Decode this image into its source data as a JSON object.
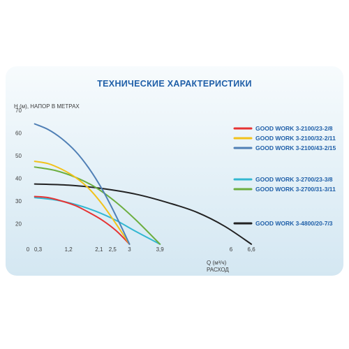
{
  "chart_data": {
    "type": "line",
    "title": "ТЕХНИЧЕСКИЕ  ХАРАКТЕРИСТИКИ",
    "ylabel": "H (м), НАПОР В МЕТРАХ",
    "xlabel": "Q (м³/ч)",
    "xlabel2": "РАСХОД",
    "xlim": [
      0,
      6.6
    ],
    "ylim": [
      10,
      70
    ],
    "x_ticks": [
      0,
      0.3,
      1.2,
      2.1,
      2.5,
      3,
      3.9,
      6,
      6.6
    ],
    "x_tick_labels": [
      "0",
      "0,3",
      "1,2",
      "2,1",
      "2,5",
      "3",
      "3,9",
      "6",
      "6,6"
    ],
    "y_ticks": [
      20,
      30,
      40,
      50,
      60,
      70
    ],
    "y_tick_labels": [
      "20",
      "30",
      "40",
      "50",
      "60",
      "70"
    ],
    "grid": false,
    "legend_position": "right",
    "series": [
      {
        "name": "GOOD WORK 3-2100/23-2/8",
        "color": "#e63333",
        "x": [
          0.2,
          0.6,
          1.0,
          1.4,
          1.8,
          2.2,
          2.6,
          3.0
        ],
        "y": [
          32,
          31.5,
          30,
          28,
          25,
          21.5,
          17,
          11
        ]
      },
      {
        "name": "GOOD WORK 3-2100/32-2/11",
        "color": "#f2c21b",
        "x": [
          0.2,
          0.6,
          1.0,
          1.4,
          1.8,
          2.2,
          2.6,
          3.0
        ],
        "y": [
          47.5,
          46.5,
          44,
          40.5,
          35.5,
          28.5,
          20,
          11
        ]
      },
      {
        "name": "GOOD WORK 3-2100/43-2/15",
        "color": "#4f7fb5",
        "x": [
          0.2,
          0.6,
          1.0,
          1.4,
          1.8,
          2.2,
          2.6,
          3.0
        ],
        "y": [
          64,
          61.5,
          57.5,
          52,
          44.5,
          35,
          23.5,
          11
        ]
      },
      {
        "name": "GOOD WORK 3-2700/23-3/8",
        "color": "#33b7d1",
        "x": [
          0.2,
          0.8,
          1.4,
          2.0,
          2.6,
          3.2,
          3.9
        ],
        "y": [
          31.5,
          30.5,
          28.5,
          25.5,
          21.5,
          16.5,
          11
        ]
      },
      {
        "name": "GOOD WORK 3-2700/31-3/11",
        "color": "#6cae3f",
        "x": [
          0.2,
          0.8,
          1.4,
          2.0,
          2.6,
          3.2,
          3.9
        ],
        "y": [
          45,
          43.5,
          40.5,
          36,
          29.5,
          21.5,
          11
        ]
      },
      {
        "name": "GOOD WORK 3-4800/20-7/3",
        "color": "#222222",
        "x": [
          0.2,
          1.2,
          2.2,
          3.2,
          4.2,
          5.0,
          5.8,
          6.6
        ],
        "y": [
          37.5,
          37,
          35.5,
          33,
          29,
          25,
          19,
          11
        ]
      }
    ]
  }
}
